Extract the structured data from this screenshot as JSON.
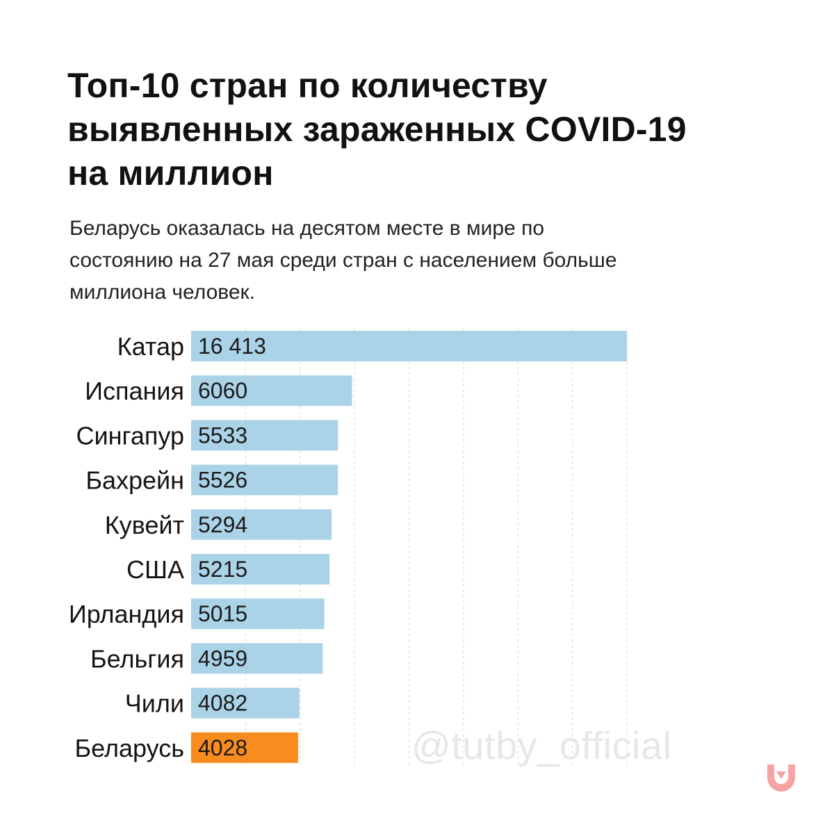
{
  "header": {
    "title": "Топ-10 стран по количеству\nвыявленных зараженных COVID-19\nна миллион",
    "subtitle": "Беларусь оказалась на десятом месте в мире по\nсостоянию на 27 мая среди стран с населением больше\nмиллиона человек."
  },
  "watermark": "@tutby_official",
  "logo_icon": "tutby-down-arrow-logo-icon",
  "colors": {
    "bar_default": "#abd3e8",
    "bar_highlight": "#f98c1e",
    "logo": "#f6a3a5"
  },
  "chart_data": {
    "type": "bar",
    "orientation": "horizontal",
    "title": "Топ-10 стран по количеству выявленных зараженных COVID-19 на миллион",
    "subtitle": "Беларусь оказалась на десятом месте в мире по состоянию на 27 мая среди стран с населением больше миллиона человек.",
    "categories": [
      "Катар",
      "Испания",
      "Сингапур",
      "Бахрейн",
      "Кувейт",
      "США",
      "Ирландия",
      "Бельгия",
      "Чили",
      "Беларусь"
    ],
    "values": [
      16413,
      6060,
      5533,
      5526,
      5294,
      5215,
      5015,
      4959,
      4082,
      4028
    ],
    "value_labels": [
      "16 413",
      "6060",
      "5533",
      "5526",
      "5294",
      "5215",
      "5015",
      "4959",
      "4082",
      "4028"
    ],
    "highlight": "Беларусь",
    "xlim": [
      0,
      16413
    ],
    "grid": true,
    "legend": "none",
    "xlabel": "",
    "ylabel": ""
  }
}
